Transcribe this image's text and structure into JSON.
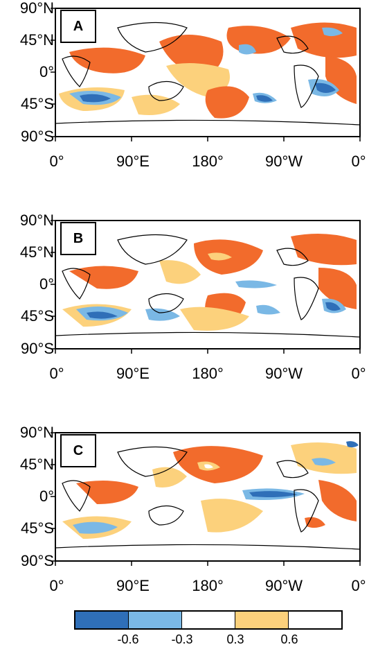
{
  "map": {
    "lat_labels": [
      "90°N",
      "45°N",
      "0°",
      "45°S",
      "90°S"
    ],
    "lon_labels": [
      "0°",
      "90°E",
      "180°",
      "90°W",
      "0°"
    ]
  },
  "panels": [
    {
      "label": "A"
    },
    {
      "label": "B"
    },
    {
      "label": "C"
    }
  ],
  "colorbar": {
    "colors": [
      "#2f6fb8",
      "#7ab8e5",
      "#ffffff",
      "#fcd17c",
      "#ffffff"
    ],
    "tick_labels": [
      "-0.6",
      "-0.3",
      "0.3",
      "0.6"
    ]
  },
  "colors": {
    "strong_warm": "#f26b2c",
    "weak_warm": "#fcd17c",
    "weak_cool": "#7ab8e5",
    "strong_cool": "#2f6fb8",
    "land_outline": "#000000"
  }
}
